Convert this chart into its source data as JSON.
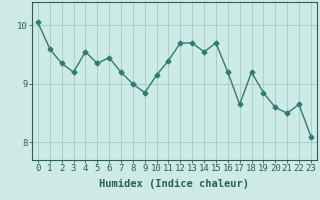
{
  "x": [
    0,
    1,
    2,
    3,
    4,
    5,
    6,
    7,
    8,
    9,
    10,
    11,
    12,
    13,
    14,
    15,
    16,
    17,
    18,
    19,
    20,
    21,
    22,
    23
  ],
  "y": [
    10.05,
    9.6,
    9.35,
    9.2,
    9.55,
    9.35,
    9.45,
    9.2,
    9.0,
    8.85,
    9.15,
    9.4,
    9.7,
    9.7,
    9.55,
    9.7,
    9.2,
    8.65,
    9.2,
    8.85,
    8.6,
    8.5,
    8.65,
    8.1
  ],
  "line_color": "#2e7d6e",
  "marker": "D",
  "marker_size": 2.5,
  "bg_color": "#ceeae7",
  "grid_color": "#9eccc7",
  "xlabel": "Humidex (Indice chaleur)",
  "ylim": [
    7.7,
    10.4
  ],
  "yticks": [
    8,
    9,
    10
  ],
  "xticks": [
    0,
    1,
    2,
    3,
    4,
    5,
    6,
    7,
    8,
    9,
    10,
    11,
    12,
    13,
    14,
    15,
    16,
    17,
    18,
    19,
    20,
    21,
    22,
    23
  ],
  "xlabel_fontsize": 7.5,
  "tick_fontsize": 6.5,
  "line_width": 1.0,
  "text_color": "#2a5f58"
}
